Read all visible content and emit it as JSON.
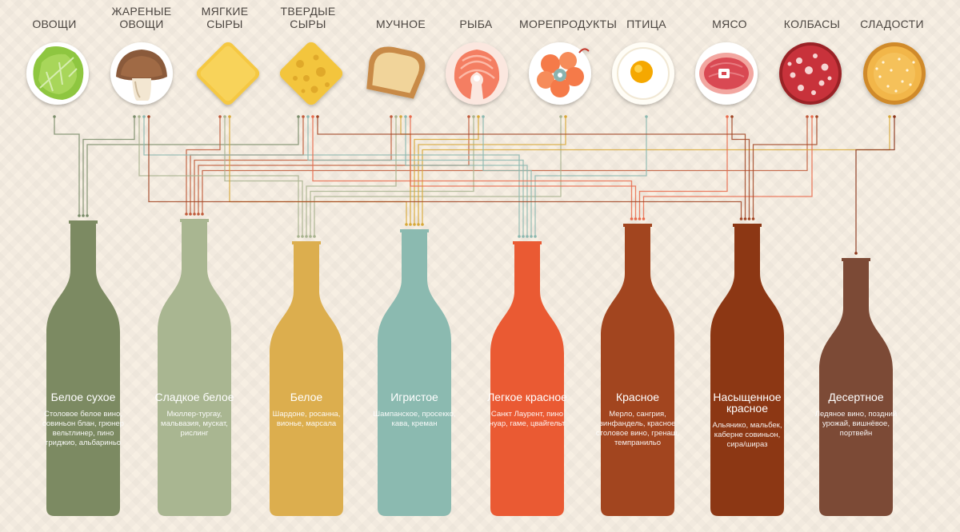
{
  "colors": {
    "background": "#f7efe3",
    "label": "#4b4540",
    "wire_colors": [
      "#7a8c6a",
      "#c05a3a",
      "#a8b38f",
      "#d8a838",
      "#8cb8b0",
      "#e96a4b",
      "#a14524",
      "#8a3419"
    ]
  },
  "foods": [
    {
      "id": "vegetables",
      "line1": "",
      "line2": "ОВОЩИ",
      "icon": "lettuce-icon"
    },
    {
      "id": "roasted-vegetables",
      "line1": "ЖАРЕНЫЕ",
      "line2": "ОВОЩИ",
      "icon": "mushroom-icon"
    },
    {
      "id": "soft-cheese",
      "line1": "МЯГКИЕ",
      "line2": "СЫРЫ",
      "icon": "soft-cheese-icon"
    },
    {
      "id": "hard-cheese",
      "line1": "ТВЕРДЫЕ",
      "line2": "СЫРЫ",
      "icon": "hard-cheese-icon"
    },
    {
      "id": "starch",
      "line1": "",
      "line2": "МУЧНОЕ",
      "icon": "bread-icon"
    },
    {
      "id": "fish",
      "line1": "",
      "line2": "РЫБА",
      "icon": "salmon-steak-icon"
    },
    {
      "id": "seafood",
      "line1": "",
      "line2": "МОРЕПРОДУКТЫ",
      "icon": "shrimp-icon"
    },
    {
      "id": "poultry",
      "line1": "",
      "line2": "ПТИЦА",
      "icon": "fried-egg-icon"
    },
    {
      "id": "meat",
      "line1": "",
      "line2": "МЯСО",
      "icon": "ham-icon"
    },
    {
      "id": "cured-meat",
      "line1": "",
      "line2": "КОЛБАСЫ",
      "icon": "salami-icon"
    },
    {
      "id": "sweets",
      "line1": "",
      "line2": "СЛАДОСТИ",
      "icon": "cake-icon"
    }
  ],
  "wines": [
    {
      "id": "dry-white",
      "name": "Белое сухое",
      "color": "#7c8a62",
      "desc": "Столовое белое вино, совиньон блан, грюнер вельтлинер, пино гриджио, альбариньо"
    },
    {
      "id": "sweet-white",
      "name": "Сладкое белое",
      "color": "#a9b691",
      "desc": "Мюллер-тургау, мальвазия, мускат, рислинг"
    },
    {
      "id": "white",
      "name": "Белое",
      "color": "#dcae4e",
      "desc": "Шардоне, росанна, вионье, марсала"
    },
    {
      "id": "sparkling",
      "name": "Игристое",
      "color": "#8bbab0",
      "desc": "Шампанское, просекко, кава, креман"
    },
    {
      "id": "light-red",
      "name": "Легкое красное",
      "color": "#ea5a33",
      "desc": "Санкт Лаурент, пино нуар, гаме, цвайгельт"
    },
    {
      "id": "red",
      "name": "Красное",
      "color": "#a2451f",
      "desc": "Мерло, сангрия, зинфандель, красное столовое вино, гренаш, темпранильо"
    },
    {
      "id": "bold-red",
      "name": "Насыщенное красное",
      "color": "#8c3714",
      "desc": "Альяникo, мальбек, каберне совиньон, сира/шираз"
    },
    {
      "id": "dessert",
      "name": "Десертное",
      "color": "#7c4a36",
      "desc": "Ледяное вино, поздний урожай, вишнёвое, портвейн"
    }
  ]
}
